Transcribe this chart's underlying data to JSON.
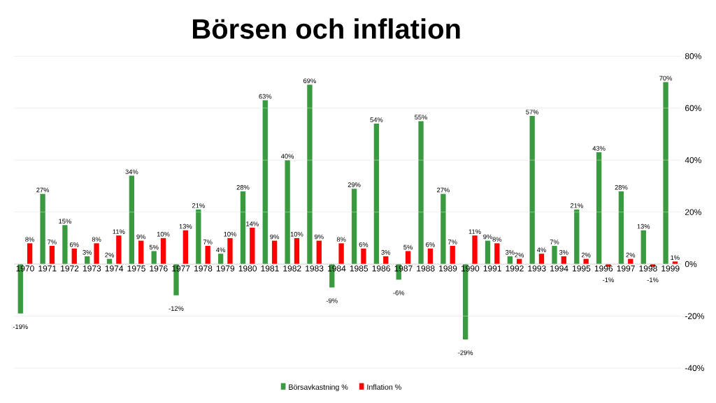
{
  "chart_data": {
    "type": "bar",
    "title": "Börsen och inflation",
    "categories": [
      "1970",
      "1971",
      "1972",
      "1973",
      "1974",
      "1975",
      "1976",
      "1977",
      "1978",
      "1979",
      "1980",
      "1981",
      "1982",
      "1983",
      "1984",
      "1985",
      "1986",
      "1987",
      "1988",
      "1989",
      "1990",
      "1991",
      "1992",
      "1993",
      "1994",
      "1995",
      "1996",
      "1997",
      "1998",
      "1999"
    ],
    "series": [
      {
        "name": "Börsavkastning %",
        "color": "#3a9a3f",
        "values": [
          -19,
          27,
          15,
          3,
          2,
          34,
          5,
          -12,
          21,
          4,
          28,
          63,
          40,
          69,
          -9,
          29,
          54,
          -6,
          55,
          27,
          -29,
          9,
          3,
          57,
          7,
          21,
          43,
          28,
          13,
          70
        ],
        "value_labels": [
          "-19%",
          "27%",
          "15%",
          "3%",
          "2%",
          "34%",
          "5%",
          "-12%",
          "21%",
          "4%",
          "28%",
          "63%",
          "40%",
          "69%",
          "-9%",
          "29%",
          "54%",
          "-6%",
          "55%",
          "27%",
          "-29%",
          "9%",
          "3%",
          "57%",
          "7%",
          "21%",
          "43%",
          "28%",
          "13%",
          "70%"
        ]
      },
      {
        "name": "Inflation %",
        "color": "#ff0000",
        "values": [
          8,
          7,
          6,
          8,
          11,
          9,
          10,
          13,
          7,
          10,
          14,
          9,
          10,
          9,
          8,
          6,
          3,
          5,
          6,
          7,
          11,
          8,
          2,
          4,
          3,
          2,
          -1,
          2,
          -1,
          1
        ],
        "value_labels": [
          "8%",
          "7%",
          "6%",
          "8%",
          "11%",
          "9%",
          "10%",
          "13%",
          "7%",
          "10%",
          "14%",
          "9%",
          "10%",
          "9%",
          "8%",
          "6%",
          "3%",
          "5%",
          "6%",
          "7%",
          "11%",
          "8%",
          "2%",
          "4%",
          "3%",
          "2%",
          "-1%",
          "2%",
          "-1%",
          "1%"
        ]
      }
    ],
    "ylim": [
      -40,
      80
    ],
    "yticks": [
      {
        "value": -40,
        "label": "-40%"
      },
      {
        "value": -20,
        "label": "-20%"
      },
      {
        "value": 0,
        "label": "0%"
      },
      {
        "value": 20,
        "label": "20%"
      },
      {
        "value": 40,
        "label": "40%"
      },
      {
        "value": 60,
        "label": "60%"
      },
      {
        "value": 80,
        "label": "80%"
      }
    ],
    "grid": "y",
    "legend": "bottom"
  }
}
